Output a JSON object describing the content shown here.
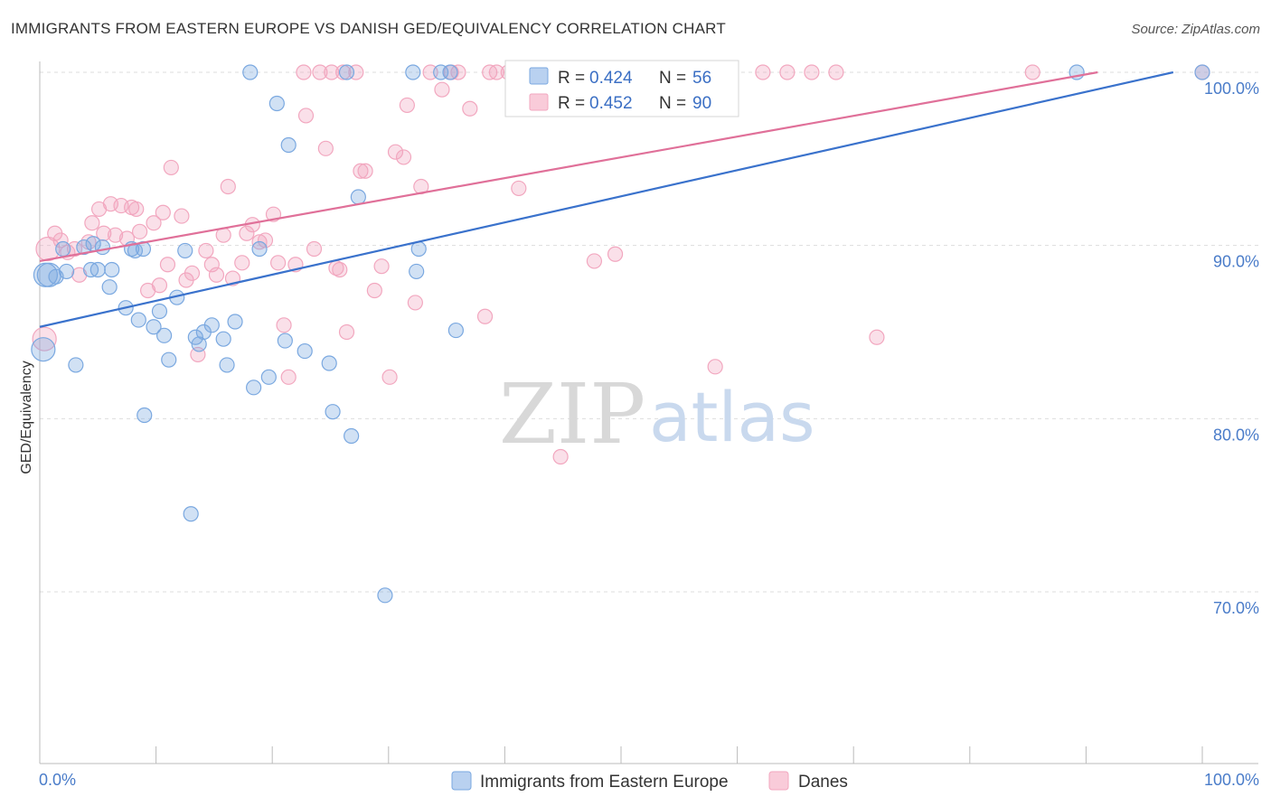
{
  "title": "IMMIGRANTS FROM EASTERN EUROPE VS DANISH GED/EQUIVALENCY CORRELATION CHART",
  "source": "Source: ZipAtlas.com",
  "watermark": {
    "zip": "ZIP",
    "atlas": "atlas"
  },
  "chart_data": {
    "type": "scatter",
    "title": "IMMIGRANTS FROM EASTERN EUROPE VS DANISH GED/EQUIVALENCY CORRELATION CHART",
    "ylabel": "GED/Equivalency",
    "xlabel": "",
    "xlim": [
      0,
      100
    ],
    "ylim": [
      60.5,
      101.5
    ],
    "x_tick_labels": [
      "0.0%",
      "100.0%"
    ],
    "y_ticks": [
      {
        "value": 100,
        "label": "100.0%"
      },
      {
        "value": 90,
        "label": "90.0%"
      },
      {
        "value": 80,
        "label": "80.0%"
      },
      {
        "value": 70,
        "label": "70.0%"
      }
    ],
    "grid": true,
    "legend_placement": "top-center",
    "stats": [
      {
        "r_label": "R =",
        "r_value": "0.424",
        "n_label": "N =",
        "n_value": "56"
      },
      {
        "r_label": "R =",
        "r_value": "0.452",
        "n_label": "N =",
        "n_value": "90"
      }
    ],
    "series": [
      {
        "name": "Immigrants from Eastern Europe",
        "color": "#7aa8e0",
        "line_color": "#3a72cc",
        "trend": [
          [
            0,
            85.3
          ],
          [
            97.5,
            100.0
          ]
        ],
        "points": [
          [
            0.3,
            84.0
          ],
          [
            0.8,
            88.3
          ],
          [
            1.4,
            88.2
          ],
          [
            2.3,
            88.5
          ],
          [
            3.1,
            83.1
          ],
          [
            2.0,
            89.8
          ],
          [
            3.8,
            89.9
          ],
          [
            4.6,
            90.1
          ],
          [
            4.4,
            88.6
          ],
          [
            5.0,
            88.6
          ],
          [
            5.4,
            89.9
          ],
          [
            6.0,
            87.6
          ],
          [
            6.2,
            88.6
          ],
          [
            7.4,
            86.4
          ],
          [
            7.9,
            89.8
          ],
          [
            8.2,
            89.7
          ],
          [
            8.5,
            85.7
          ],
          [
            8.9,
            89.8
          ],
          [
            9.0,
            80.2
          ],
          [
            9.8,
            85.3
          ],
          [
            10.3,
            86.2
          ],
          [
            10.7,
            84.8
          ],
          [
            11.1,
            83.4
          ],
          [
            11.8,
            87.0
          ],
          [
            12.5,
            89.7
          ],
          [
            13.0,
            74.5
          ],
          [
            13.4,
            84.7
          ],
          [
            13.7,
            84.3
          ],
          [
            14.1,
            85.0
          ],
          [
            14.8,
            85.4
          ],
          [
            15.8,
            84.6
          ],
          [
            16.1,
            83.1
          ],
          [
            16.8,
            85.6
          ],
          [
            18.1,
            100.0
          ],
          [
            18.4,
            81.8
          ],
          [
            18.9,
            89.8
          ],
          [
            19.7,
            82.4
          ],
          [
            20.4,
            98.2
          ],
          [
            21.1,
            84.5
          ],
          [
            21.4,
            95.8
          ],
          [
            22.8,
            83.9
          ],
          [
            24.9,
            83.2
          ],
          [
            25.2,
            80.4
          ],
          [
            26.4,
            100.0
          ],
          [
            26.8,
            79.0
          ],
          [
            27.4,
            92.8
          ],
          [
            29.7,
            69.8
          ],
          [
            32.1,
            100.0
          ],
          [
            32.4,
            88.5
          ],
          [
            32.6,
            89.8
          ],
          [
            34.5,
            100.0
          ],
          [
            35.3,
            100.0
          ],
          [
            35.8,
            85.1
          ],
          [
            89.2,
            100.0
          ],
          [
            100.0,
            100.0
          ],
          [
            0.5,
            88.3
          ]
        ]
      },
      {
        "name": "Danes",
        "color": "#f2a7bf",
        "line_color": "#e07099",
        "trend": [
          [
            0,
            89.1
          ],
          [
            91.0,
            100.0
          ]
        ],
        "points": [
          [
            0.4,
            84.6
          ],
          [
            0.7,
            89.8
          ],
          [
            1.3,
            90.7
          ],
          [
            1.8,
            90.3
          ],
          [
            2.4,
            89.6
          ],
          [
            3.0,
            89.8
          ],
          [
            3.4,
            88.3
          ],
          [
            4.2,
            90.2
          ],
          [
            4.5,
            91.3
          ],
          [
            5.1,
            92.1
          ],
          [
            5.5,
            90.7
          ],
          [
            6.1,
            92.4
          ],
          [
            6.5,
            90.6
          ],
          [
            7.0,
            92.3
          ],
          [
            7.5,
            90.4
          ],
          [
            7.9,
            92.2
          ],
          [
            8.3,
            92.1
          ],
          [
            8.6,
            90.8
          ],
          [
            9.3,
            87.4
          ],
          [
            9.8,
            91.3
          ],
          [
            10.3,
            87.7
          ],
          [
            10.6,
            91.9
          ],
          [
            11.0,
            88.9
          ],
          [
            11.3,
            94.5
          ],
          [
            12.2,
            91.7
          ],
          [
            12.6,
            88.0
          ],
          [
            13.1,
            88.4
          ],
          [
            13.6,
            83.7
          ],
          [
            14.3,
            89.7
          ],
          [
            14.8,
            88.9
          ],
          [
            15.2,
            88.3
          ],
          [
            15.8,
            90.6
          ],
          [
            16.2,
            93.4
          ],
          [
            16.6,
            88.1
          ],
          [
            17.4,
            89.0
          ],
          [
            17.8,
            90.7
          ],
          [
            18.3,
            91.2
          ],
          [
            18.9,
            90.2
          ],
          [
            19.4,
            90.3
          ],
          [
            20.1,
            91.8
          ],
          [
            20.5,
            89.0
          ],
          [
            21.0,
            85.4
          ],
          [
            21.4,
            82.4
          ],
          [
            22.0,
            88.9
          ],
          [
            22.7,
            100.0
          ],
          [
            22.9,
            97.5
          ],
          [
            23.6,
            89.8
          ],
          [
            24.1,
            100.0
          ],
          [
            24.6,
            95.6
          ],
          [
            25.1,
            100.0
          ],
          [
            25.5,
            88.7
          ],
          [
            25.8,
            88.6
          ],
          [
            26.1,
            100.0
          ],
          [
            26.4,
            85.0
          ],
          [
            27.2,
            100.0
          ],
          [
            27.6,
            94.3
          ],
          [
            28.0,
            94.3
          ],
          [
            28.8,
            87.4
          ],
          [
            29.4,
            88.8
          ],
          [
            30.1,
            82.4
          ],
          [
            30.6,
            95.4
          ],
          [
            31.3,
            95.1
          ],
          [
            31.6,
            98.1
          ],
          [
            32.3,
            86.7
          ],
          [
            32.8,
            93.4
          ],
          [
            33.6,
            100.0
          ],
          [
            34.6,
            99.0
          ],
          [
            35.4,
            100.0
          ],
          [
            36.0,
            100.0
          ],
          [
            37.0,
            97.9
          ],
          [
            38.3,
            85.9
          ],
          [
            38.7,
            100.0
          ],
          [
            39.3,
            100.0
          ],
          [
            40.3,
            100.0
          ],
          [
            41.2,
            93.3
          ],
          [
            41.9,
            100.0
          ],
          [
            44.8,
            77.8
          ],
          [
            47.7,
            89.1
          ],
          [
            49.5,
            89.5
          ],
          [
            51.8,
            100.0
          ],
          [
            54.9,
            100.0
          ],
          [
            56.2,
            100.0
          ],
          [
            58.1,
            83.0
          ],
          [
            62.2,
            100.0
          ],
          [
            64.3,
            100.0
          ],
          [
            66.4,
            100.0
          ],
          [
            68.5,
            100.0
          ],
          [
            72.0,
            84.7
          ],
          [
            85.4,
            100.0
          ],
          [
            100.0,
            100.0
          ]
        ]
      }
    ]
  }
}
